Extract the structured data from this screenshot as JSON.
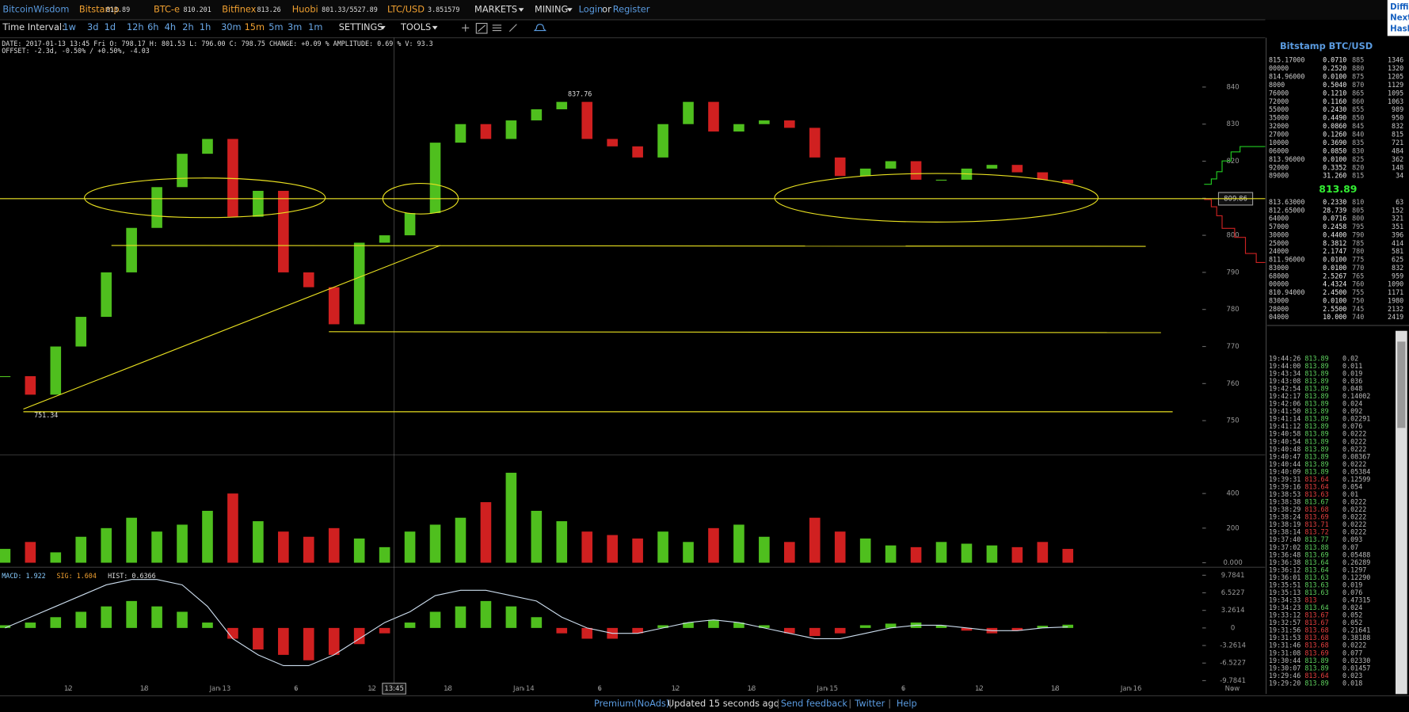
{
  "nav": {
    "brand": "BitcoinWisdom",
    "tickers": [
      {
        "name": "Bitstamp",
        "price": "813.89"
      },
      {
        "name": "BTC-e",
        "price": "810.201"
      },
      {
        "name": "Bitfinex",
        "price": "813.26"
      },
      {
        "name": "Huobi",
        "price": "801.33/5527.89"
      },
      {
        "name": "LTC/USD",
        "price": "3.851579"
      }
    ],
    "menus": [
      "MARKETS",
      "MINING"
    ],
    "login": "Login",
    "or": "or",
    "register": "Register",
    "side_cut": [
      "Diffi",
      "Next",
      "Hash"
    ]
  },
  "toolbar": {
    "label": "Time Interval:",
    "intervals": [
      "1w",
      "3d",
      "1d",
      "12h",
      "6h",
      "4h",
      "2h",
      "1h",
      "30m",
      "15m",
      "5m",
      "3m",
      "1m"
    ],
    "selected": "15m",
    "settings": "SETTINGS",
    "tools": "TOOLS"
  },
  "info": {
    "line1": "DATE: 2017-01-13 13:45 Fri   O: 798.17   H: 801.53   L: 796.00   C: 798.75   CHANGE: +0.09 %   AMPLITUDE: 0.69 %   V: 93.3",
    "line2": "OFFSET: -2.3d, -0.50% / +0.50%, -4.03"
  },
  "chart": {
    "xlim": [
      6.6,
      106.6
    ],
    "xticks": [
      {
        "value": 12,
        "label": "12"
      },
      {
        "value": 18,
        "label": "18"
      },
      {
        "value": 24,
        "label": "Jan 13"
      },
      {
        "value": 30,
        "label": "6"
      },
      {
        "value": 36,
        "label": "12"
      },
      {
        "value": 42,
        "label": "18"
      },
      {
        "value": 48,
        "label": "Jan 14"
      },
      {
        "value": 54,
        "label": "6"
      },
      {
        "value": 60,
        "label": "12"
      },
      {
        "value": 66,
        "label": "18"
      },
      {
        "value": 72,
        "label": "Jan 15"
      },
      {
        "value": 78,
        "label": "6"
      },
      {
        "value": 84,
        "label": "12"
      },
      {
        "value": 90,
        "label": "18"
      },
      {
        "value": 96,
        "label": "Jan 16"
      },
      {
        "value": 104,
        "label": "Now"
      }
    ],
    "crosshair_time": {
      "value": 37.75,
      "label": "13:45"
    },
    "price": {
      "ylim": [
        741,
        853.3
      ],
      "yticks": [
        750,
        760,
        770,
        780,
        790,
        800,
        810,
        820,
        830,
        840
      ],
      "x": [
        7,
        9,
        11,
        13,
        15,
        17,
        19,
        21,
        23,
        25,
        27,
        29,
        31,
        33,
        35,
        37,
        39,
        41,
        43,
        45,
        47,
        49,
        51,
        53,
        55,
        57,
        59,
        61,
        63,
        65,
        67,
        69,
        71,
        73,
        75,
        77,
        79,
        81,
        83,
        85,
        87,
        89,
        91
      ],
      "close": [
        762,
        757,
        770,
        778,
        790,
        802,
        813,
        822,
        826,
        805,
        812,
        790,
        786,
        776,
        798,
        800,
        806,
        825,
        830,
        826,
        831,
        834,
        836,
        826,
        824,
        821,
        830,
        836,
        828,
        830,
        831,
        829,
        821,
        816,
        818,
        820,
        815,
        815,
        818,
        819,
        817,
        815,
        814
      ],
      "high_note": "837.76",
      "low_note": "751.34",
      "crosshair_price": 809.86
    },
    "volume": {
      "ylim": [
        -21,
        618
      ],
      "yticks": [
        {
          "value": 0,
          "label": "0.000"
        },
        200,
        400
      ],
      "values": [
        80,
        120,
        60,
        150,
        200,
        260,
        180,
        220,
        300,
        400,
        240,
        180,
        150,
        200,
        140,
        90,
        180,
        220,
        260,
        350,
        520,
        300,
        240,
        180,
        160,
        140,
        180,
        120,
        200,
        220,
        150,
        120,
        260,
        180,
        140,
        100,
        90,
        120,
        110,
        100,
        90,
        120,
        80
      ]
    },
    "macd": {
      "ylim": [
        -11.1,
        11.1
      ],
      "yticks": [
        9.7841,
        6.5227,
        3.2614,
        0,
        -3.2614,
        -6.5227,
        -9.7841
      ],
      "macd_label": "MACD: 1.922",
      "sig_label": "SIG: 1.604",
      "hist_label": "HIST: 0.6366",
      "hist": [
        0.5,
        1,
        2,
        3,
        4,
        5,
        4,
        3,
        1,
        -2,
        -4,
        -5,
        -6,
        -5,
        -3,
        -1,
        1,
        3,
        4,
        5,
        4,
        2,
        -1,
        -2,
        -2,
        -1,
        0.5,
        1,
        1.5,
        1,
        0.5,
        -1,
        -1.5,
        -1,
        0.5,
        0.8,
        1,
        0.5,
        -0.5,
        -1,
        -0.5,
        0.4,
        0.6
      ],
      "line": [
        0,
        2,
        4,
        6,
        8,
        9,
        9,
        8,
        4,
        -2,
        -5,
        -7,
        -7,
        -5,
        -2,
        1,
        3,
        6,
        7,
        7,
        6,
        5,
        2,
        0,
        -1,
        -1,
        0,
        1,
        1.5,
        1,
        0,
        -1,
        -2,
        -2,
        -1,
        0,
        0.5,
        0.5,
        0,
        -0.5,
        -0.5,
        0,
        0.2
      ]
    }
  },
  "orderbook": {
    "title": "Bitstamp BTC/USD",
    "last": "813.89",
    "asks": [
      [
        "815.17000",
        "0.0710",
        "885",
        "1346"
      ],
      [
        "00000",
        "0.2520",
        "880",
        "1320"
      ],
      [
        "814.96000",
        "0.0100",
        "875",
        "1205"
      ],
      [
        "8000",
        "0.5040",
        "870",
        "1129"
      ],
      [
        "76000",
        "0.1210",
        "865",
        "1095"
      ],
      [
        "72000",
        "0.1160",
        "860",
        "1063"
      ],
      [
        "55000",
        "0.2430",
        "855",
        "989"
      ],
      [
        "35000",
        "0.4490",
        "850",
        "950"
      ],
      [
        "32000",
        "0.0860",
        "845",
        "832"
      ],
      [
        "27000",
        "0.1260",
        "840",
        "815"
      ],
      [
        "10000",
        "0.3690",
        "835",
        "721"
      ],
      [
        "06000",
        "0.0850",
        "830",
        "484"
      ],
      [
        "813.96000",
        "0.0100",
        "825",
        "362"
      ],
      [
        "92000",
        "0.3352",
        "820",
        "148"
      ],
      [
        "89000",
        "31.260",
        "815",
        "34"
      ]
    ],
    "bids": [
      [
        "813.63000",
        "0.2330",
        "810",
        "63"
      ],
      [
        "812.65000",
        "28.739",
        "805",
        "152"
      ],
      [
        "64000",
        "0.0716",
        "800",
        "321"
      ],
      [
        "57000",
        "0.2458",
        "795",
        "351"
      ],
      [
        "30000",
        "0.4400",
        "790",
        "396"
      ],
      [
        "25000",
        "8.3812",
        "785",
        "414"
      ],
      [
        "24000",
        "2.1747",
        "780",
        "581"
      ],
      [
        "811.96000",
        "0.0100",
        "775",
        "625"
      ],
      [
        "83000",
        "0.0100",
        "770",
        "832"
      ],
      [
        "68000",
        "2.5267",
        "765",
        "959"
      ],
      [
        "00000",
        "4.4324",
        "760",
        "1090"
      ],
      [
        "810.94000",
        "2.4500",
        "755",
        "1171"
      ],
      [
        "83000",
        "0.0100",
        "750",
        "1980"
      ],
      [
        "28000",
        "2.5500",
        "745",
        "2132"
      ],
      [
        "04000",
        "10.000",
        "740",
        "2419"
      ]
    ]
  },
  "trades": {
    "buy_color": "#5fd35f",
    "sell_color": "#e84040",
    "rows": [
      [
        "19:44:26",
        "813.89",
        "0.02",
        "buy"
      ],
      [
        "19:44:00",
        "813.89",
        "0.011",
        "buy"
      ],
      [
        "19:43:34",
        "813.89",
        "0.019",
        "buy"
      ],
      [
        "19:43:08",
        "813.89",
        "0.036",
        "buy"
      ],
      [
        "19:42:54",
        "813.89",
        "0.048",
        "buy"
      ],
      [
        "19:42:17",
        "813.89",
        "0.14002",
        "buy"
      ],
      [
        "19:42:06",
        "813.89",
        "0.024",
        "buy"
      ],
      [
        "19:41:50",
        "813.89",
        "0.092",
        "buy"
      ],
      [
        "19:41:14",
        "813.89",
        "0.02291",
        "buy"
      ],
      [
        "19:41:12",
        "813.89",
        "0.076",
        "buy"
      ],
      [
        "19:40:58",
        "813.89",
        "0.0222",
        "buy"
      ],
      [
        "19:40:54",
        "813.89",
        "0.0222",
        "buy"
      ],
      [
        "19:40:48",
        "813.89",
        "0.0222",
        "buy"
      ],
      [
        "19:40:47",
        "813.89",
        "0.08367",
        "buy"
      ],
      [
        "19:40:44",
        "813.89",
        "0.0222",
        "buy"
      ],
      [
        "19:40:09",
        "813.89",
        "0.05384",
        "buy"
      ],
      [
        "19:39:31",
        "813.64",
        "0.12599",
        "sell"
      ],
      [
        "19:39:16",
        "813.64",
        "0.054",
        "sell"
      ],
      [
        "19:38:53",
        "813.63",
        "0.01",
        "sell"
      ],
      [
        "19:38:38",
        "813.67",
        "0.0222",
        "buy"
      ],
      [
        "19:38:29",
        "813.68",
        "0.0222",
        "sell"
      ],
      [
        "19:38:24",
        "813.69",
        "0.0222",
        "sell"
      ],
      [
        "19:38:19",
        "813.71",
        "0.0222",
        "sell"
      ],
      [
        "19:38:14",
        "813.72",
        "0.0222",
        "sell"
      ],
      [
        "19:37:40",
        "813.77",
        "0.093",
        "buy"
      ],
      [
        "19:37:02",
        "813.88",
        "0.07",
        "buy"
      ],
      [
        "19:36:48",
        "813.69",
        "0.05488",
        "buy"
      ],
      [
        "19:36:38",
        "813.64",
        "0.26289",
        "buy"
      ],
      [
        "19:36:12",
        "813.64",
        "0.1297",
        "buy"
      ],
      [
        "19:36:01",
        "813.63",
        "0.12290",
        "buy"
      ],
      [
        "19:35:51",
        "813.63",
        "0.019",
        "buy"
      ],
      [
        "19:35:13",
        "813.63",
        "0.076",
        "buy"
      ],
      [
        "19:34:33",
        "813",
        "0.47315",
        "sell"
      ],
      [
        "19:34:23",
        "813.64",
        "0.024",
        "buy"
      ],
      [
        "19:33:12",
        "813.67",
        "0.052",
        "sell"
      ],
      [
        "19:32:57",
        "813.67",
        "0.052",
        "sell"
      ],
      [
        "19:31:56",
        "813.68",
        "0.21641",
        "sell"
      ],
      [
        "19:31:53",
        "813.68",
        "0.38188",
        "sell"
      ],
      [
        "19:31:46",
        "813.68",
        "0.0222",
        "sell"
      ],
      [
        "19:31:08",
        "813.69",
        "0.077",
        "sell"
      ],
      [
        "19:30:44",
        "813.89",
        "0.02330",
        "buy"
      ],
      [
        "19:30:07",
        "813.89",
        "0.01457",
        "buy"
      ],
      [
        "19:29:46",
        "813.64",
        "0.023",
        "sell"
      ],
      [
        "19:29:20",
        "813.89",
        "0.018",
        "buy"
      ]
    ]
  },
  "footer": {
    "premium": "Premium(NoAds)",
    "updated": "Updated 15 seconds ago",
    "feedback": "Send feedback",
    "twitter": "Twitter",
    "help": "Help"
  }
}
